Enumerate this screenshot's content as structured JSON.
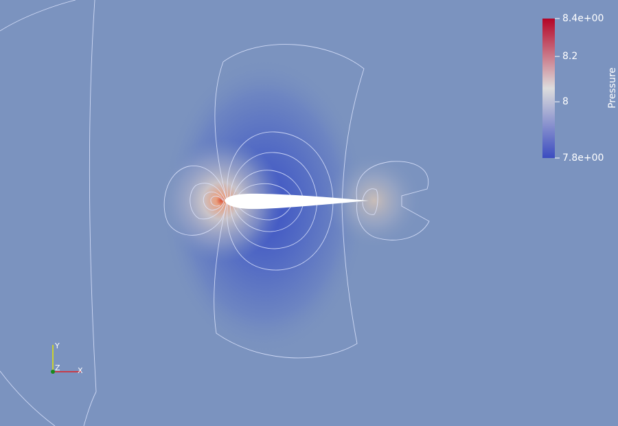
{
  "colorbar": {
    "title": "Pressure",
    "range": [
      7.752,
      8.367
    ],
    "ticks": [
      {
        "value": 8.367,
        "label": "8.4e+00"
      },
      8.2,
      8,
      {
        "value": 7.752,
        "label": "7.8e+00"
      }
    ],
    "colors": [
      "#3b4cc0",
      "#dddddd",
      "#b40426"
    ]
  },
  "axes": {
    "x": "X",
    "y": "Y",
    "z": "Z"
  }
}
